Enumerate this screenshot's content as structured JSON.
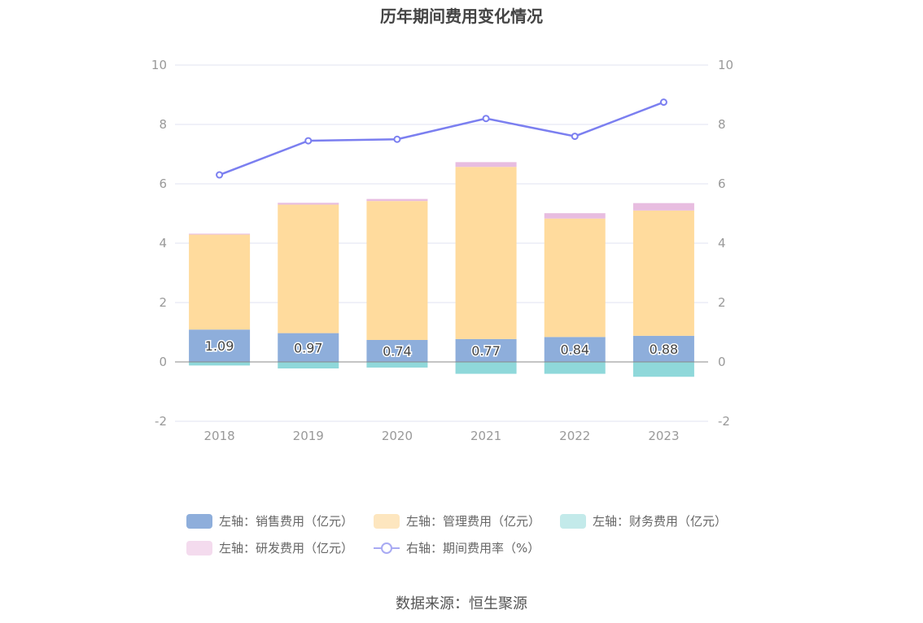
{
  "chart_data": {
    "type": "bar",
    "title": "历年期间费用变化情况",
    "categories": [
      "2018",
      "2019",
      "2020",
      "2021",
      "2022",
      "2023"
    ],
    "left_axis": {
      "ylim": [
        -2,
        10
      ],
      "ticks": [
        -2,
        0,
        2,
        4,
        6,
        8,
        10
      ]
    },
    "right_axis": {
      "ylim": [
        -2,
        10
      ],
      "ticks": [
        -2,
        0,
        2,
        4,
        6,
        8,
        10
      ]
    },
    "series": [
      {
        "name": "左轴：销售费用（亿元）",
        "type": "bar",
        "axis": "left",
        "color": "#8eaedb",
        "values": [
          1.09,
          0.97,
          0.74,
          0.77,
          0.84,
          0.88
        ],
        "labels": [
          "1.09",
          "0.97",
          "0.74",
          "0.77",
          "0.84",
          "0.88"
        ]
      },
      {
        "name": "左轴：管理费用（亿元）",
        "type": "bar",
        "axis": "left",
        "color": "#ffdb9d",
        "values": [
          3.2,
          4.33,
          4.68,
          5.8,
          3.99,
          4.22
        ]
      },
      {
        "name": "左轴：财务费用（亿元）",
        "type": "bar",
        "axis": "left",
        "color": "#8fd8da",
        "values": [
          -0.12,
          -0.22,
          -0.19,
          -0.4,
          -0.4,
          -0.5
        ]
      },
      {
        "name": "左轴：研发费用（亿元）",
        "type": "bar",
        "axis": "left",
        "color": "#e8bde0",
        "values": [
          0.03,
          0.06,
          0.07,
          0.16,
          0.18,
          0.25
        ]
      },
      {
        "name": "右轴：期间费用率（%）",
        "type": "line",
        "axis": "right",
        "color": "#7b7ff0",
        "values": [
          6.3,
          7.45,
          7.5,
          8.2,
          7.6,
          8.75
        ]
      }
    ],
    "grid": true,
    "legend_position": "bottom"
  },
  "legend_swatch_colors": {
    "sales": "#8eaedb",
    "admin": "#fde6bf",
    "finance": "#c3eaea",
    "rd": "#f4dbee",
    "rate": "#a8aaf3"
  },
  "source": "数据来源：恒生聚源"
}
